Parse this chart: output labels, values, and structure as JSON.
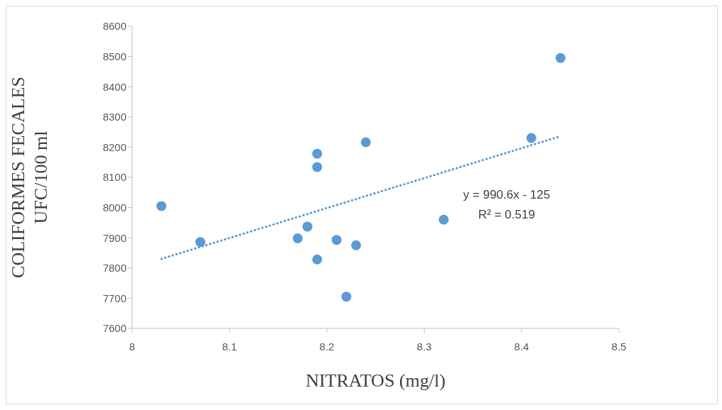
{
  "chart_data": {
    "type": "scatter",
    "xlabel": "NITRATOS  (mg/l)",
    "ylabel": "COLIFORMES FECALES\nUFC/100 ml",
    "xlim": [
      8,
      8.5
    ],
    "xticks": [
      8,
      8.1,
      8.2,
      8.3,
      8.4,
      8.5
    ],
    "ylim": [
      7600,
      8600
    ],
    "yticks": [
      7600,
      7700,
      7800,
      7900,
      8000,
      8100,
      8200,
      8300,
      8400,
      8500,
      8600
    ],
    "marker": "circle",
    "series": [
      {
        "color": "#5b9bd5",
        "x": [
          8.03,
          8.07,
          8.17,
          8.18,
          8.19,
          8.19,
          8.19,
          8.21,
          8.22,
          8.23,
          8.24,
          8.32,
          8.41,
          8.44
        ],
        "values": [
          8005,
          7886,
          7898,
          7937,
          8178,
          8134,
          7828,
          7893,
          7705,
          7875,
          8216,
          7960,
          8230,
          8495
        ]
      },
      {
        "type": "line",
        "color": "#5b9bd5",
        "line_style": "dotted",
        "marker": "none",
        "x": [
          8.03,
          8.44
        ],
        "values": [
          7830,
          8236
        ]
      }
    ],
    "annotations": [
      "y = 990.6x - 125",
      "R² = 0.519"
    ]
  }
}
